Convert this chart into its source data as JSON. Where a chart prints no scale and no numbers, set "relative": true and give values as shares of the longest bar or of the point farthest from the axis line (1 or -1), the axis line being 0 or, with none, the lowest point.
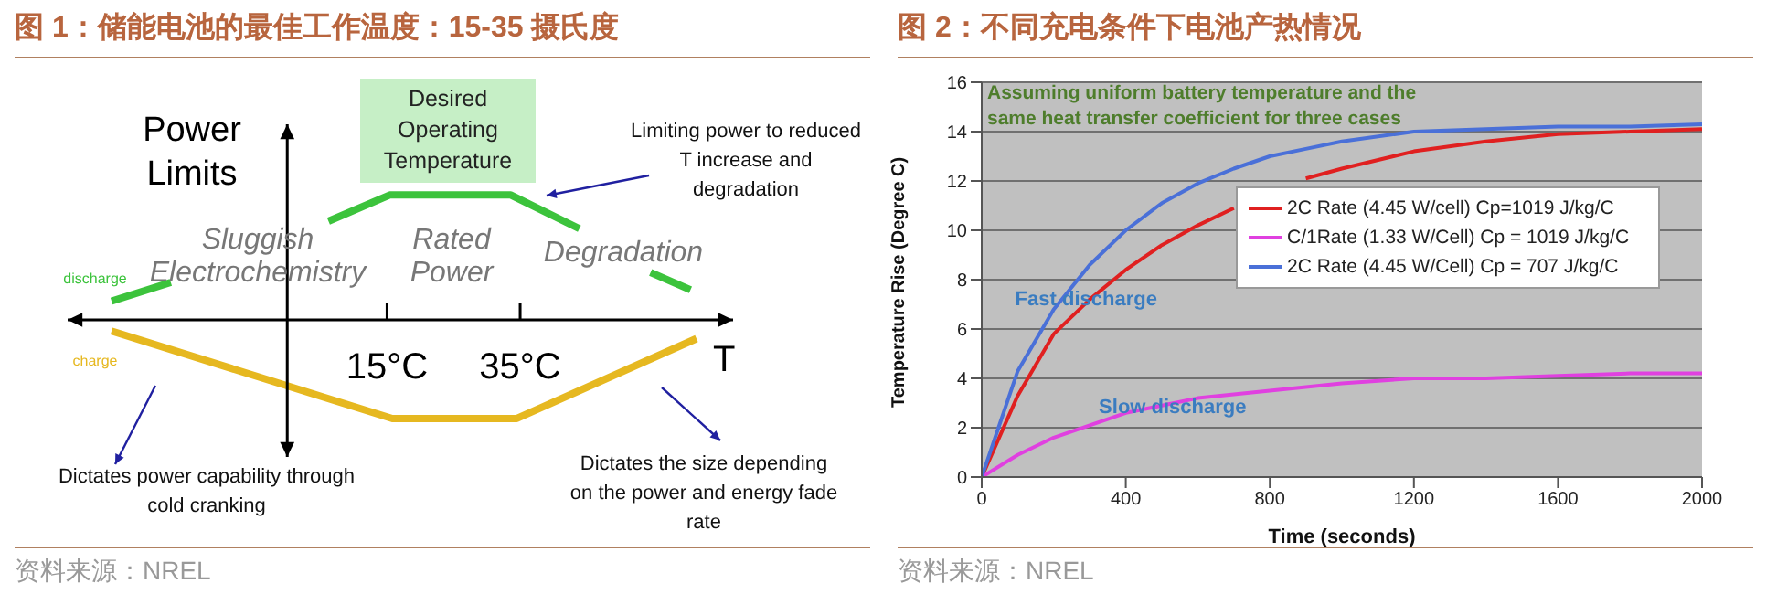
{
  "chart_data": [
    {
      "type": "line",
      "title": "图 1：储能电池的最佳工作温度：15-35 摄氏度",
      "xlabel": "T",
      "ylabel": "Power Limits",
      "relative": true,
      "marker": "none",
      "tick_labels": "x",
      "xlim": [
        -33,
        67
      ],
      "xticks": [
        {
          "value": 15,
          "label": "15°C"
        },
        {
          "value": 35,
          "label": "35°C"
        }
      ],
      "series": [
        {
          "name": "discharge",
          "color": "#3cc33c",
          "x": [
            -26.4,
            -17.5,
            -6,
            6.2,
            15.4,
            33.6,
            43.9,
            49,
            54.6,
            60.6
          ],
          "values": [
            0.15,
            0.3,
            null,
            0.79,
            1,
            1,
            0.73,
            null,
            0.38,
            0.24
          ]
        },
        {
          "name": "charge",
          "color": "#e6b820",
          "x": [
            -26.4,
            15.8,
            34.5,
            61.5
          ],
          "values": [
            -0.09,
            -0.79,
            -0.79,
            -0.15
          ]
        }
      ],
      "annotations": [
        "Desired Operating Temperature",
        "Sluggish Electrochemistry",
        "Rated Power",
        "Degradation",
        "Limiting power to reduced T increase and degradation",
        "Dictates power capability through cold cranking",
        "Dictates the size depending on the power and energy fade rate",
        "资料来源：NREL"
      ]
    },
    {
      "type": "line",
      "title": "图 2：不同充电条件下电池产热情况",
      "xlabel": "Time (seconds)",
      "ylabel": "Temperature Rise (Degree C)",
      "marker": "none",
      "grid": "y",
      "legend": "right",
      "xlim": [
        0,
        2000
      ],
      "xticks": [
        0,
        400,
        800,
        1200,
        1600,
        2000
      ],
      "ylim": [
        0,
        16
      ],
      "yticks": [
        0,
        2,
        4,
        6,
        8,
        10,
        12,
        14,
        16
      ],
      "series": [
        {
          "name": "2C Rate (4.45 W/cell) Cp=1019 J/kg/C",
          "color": "#e02020",
          "x": [
            0,
            100,
            200,
            300,
            400,
            500,
            600,
            700,
            800,
            900,
            1000,
            1200,
            1400,
            1600,
            1800,
            2000
          ],
          "values": [
            0,
            3.3,
            5.8,
            7.2,
            8.4,
            9.4,
            10.2,
            10.9,
            null,
            12.1,
            12.5,
            13.2,
            13.6,
            13.9,
            14,
            14.1
          ]
        },
        {
          "name": "C/1Rate (1.33 W/Cell) Cp = 1019 J/kg/C",
          "color": "#e040e0",
          "x": [
            0,
            100,
            200,
            300,
            400,
            500,
            600,
            800,
            1000,
            1200,
            1400,
            1600,
            1800,
            2000
          ],
          "values": [
            0,
            0.9,
            1.6,
            2.1,
            2.6,
            2.9,
            3.2,
            3.5,
            3.8,
            4,
            4,
            4.1,
            4.2,
            4.2
          ]
        },
        {
          "name": "2C Rate (4.45 W/Cell) Cp = 707 J/kg/C",
          "color": "#4a70d8",
          "x": [
            0,
            100,
            200,
            300,
            400,
            500,
            600,
            700,
            800,
            900,
            1000,
            1200,
            1400,
            1600,
            1800,
            2000
          ],
          "values": [
            0,
            4.3,
            6.8,
            8.6,
            10,
            11.1,
            11.9,
            12.5,
            13,
            13.3,
            13.6,
            14,
            14.1,
            14.2,
            14.2,
            14.3
          ]
        }
      ],
      "annotations": [
        "Assuming uniform battery temperature and the same heat transfer coefficient for three cases",
        {
          "text": "Fast discharge",
          "x": 290,
          "y": 7.2
        },
        {
          "text": "Slow discharge",
          "x": 530,
          "y": 2.85
        },
        "资料来源：NREL"
      ]
    }
  ]
}
